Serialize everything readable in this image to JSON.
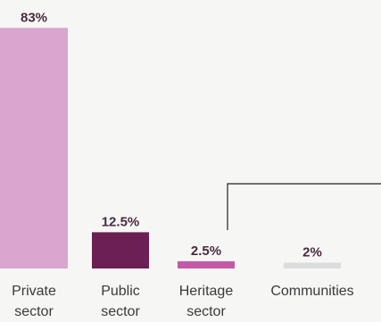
{
  "chart_data": {
    "type": "bar",
    "categories": [
      [
        "Private",
        "sector"
      ],
      [
        "Public",
        "sector"
      ],
      [
        "Heritage",
        "sector"
      ],
      [
        "Communities"
      ]
    ],
    "values": [
      83,
      12.5,
      2.5,
      2
    ],
    "value_labels": [
      "83%",
      "12.5%",
      "2.5%",
      "2%"
    ],
    "colors": [
      "#d9a6cf",
      "#6b1f52",
      "#c25aa6",
      "#dcdcdc"
    ],
    "ylim": [
      0,
      100
    ],
    "grid": false,
    "legend": "none"
  }
}
